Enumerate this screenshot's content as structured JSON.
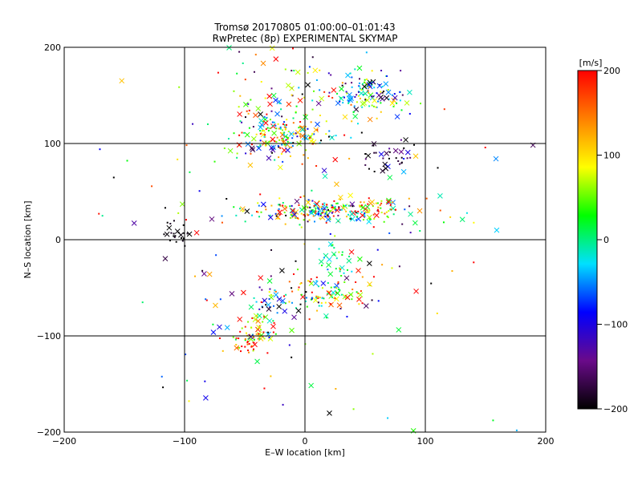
{
  "chart_data": {
    "type": "scatter",
    "title": "Tromsø 20170805 01:00:00–01:01:43",
    "subtitle": "RwPretec (8p) EXPERIMENTAL SKYMAP",
    "xlabel": "E–W location [km]",
    "ylabel": "N–S location [km]",
    "xlim": [
      -200,
      200
    ],
    "ylim": [
      -200,
      200
    ],
    "x_ticks": [
      -200,
      -100,
      0,
      100,
      200
    ],
    "y_ticks": [
      -200,
      -100,
      0,
      100,
      200
    ],
    "x_tick_labels": [
      "−200",
      "−100",
      "0",
      "100",
      "200"
    ],
    "y_tick_labels": [
      "−200",
      "−100",
      "0",
      "100",
      "200"
    ],
    "grid": true,
    "colorbar": {
      "label": "[m/s]",
      "range": [
        -200,
        200
      ],
      "ticks": [
        200,
        100,
        0,
        -100,
        -200
      ],
      "tick_labels": [
        "200",
        "100",
        "0",
        "−100",
        "−200"
      ],
      "colormap": [
        "#000000",
        "#6a0a8a",
        "#0000ff",
        "#00e0ff",
        "#00ff00",
        "#ffff00",
        "#ff8000",
        "#ff0000"
      ]
    },
    "clusters": [
      {
        "cx": 20,
        "cy": 30,
        "sx": 35,
        "sy": 6,
        "n": 260,
        "vmean": 40,
        "vsd": 120
      },
      {
        "cx": -20,
        "cy": 110,
        "sx": 22,
        "sy": 12,
        "n": 160,
        "vmean": 60,
        "vsd": 100
      },
      {
        "cx": 50,
        "cy": 150,
        "sx": 18,
        "sy": 12,
        "n": 140,
        "vmean": -20,
        "vsd": 110
      },
      {
        "cx": -25,
        "cy": 140,
        "sx": 25,
        "sy": 40,
        "n": 90,
        "vmean": 50,
        "vsd": 130
      },
      {
        "cx": 15,
        "cy": -55,
        "sx": 18,
        "sy": 10,
        "n": 90,
        "vmean": 60,
        "vsd": 110
      },
      {
        "cx": 25,
        "cy": -25,
        "sx": 8,
        "sy": 15,
        "n": 30,
        "vmean": 10,
        "vsd": 30
      },
      {
        "cx": -45,
        "cy": -100,
        "sx": 10,
        "sy": 10,
        "n": 70,
        "vmean": 130,
        "vsd": 100
      },
      {
        "cx": -35,
        "cy": -70,
        "sx": 12,
        "sy": 18,
        "n": 40,
        "vmean": -100,
        "vsd": 100
      },
      {
        "cx": -108,
        "cy": 8,
        "sx": 6,
        "sy": 8,
        "n": 25,
        "vmean": -200,
        "vsd": 10
      },
      {
        "cx": 70,
        "cy": 85,
        "sx": 14,
        "sy": 10,
        "n": 35,
        "vmean": -170,
        "vsd": 40
      },
      {
        "cx": 0,
        "cy": 0,
        "sx": 90,
        "sy": 110,
        "n": 160,
        "vmean": 20,
        "vsd": 160
      }
    ]
  }
}
